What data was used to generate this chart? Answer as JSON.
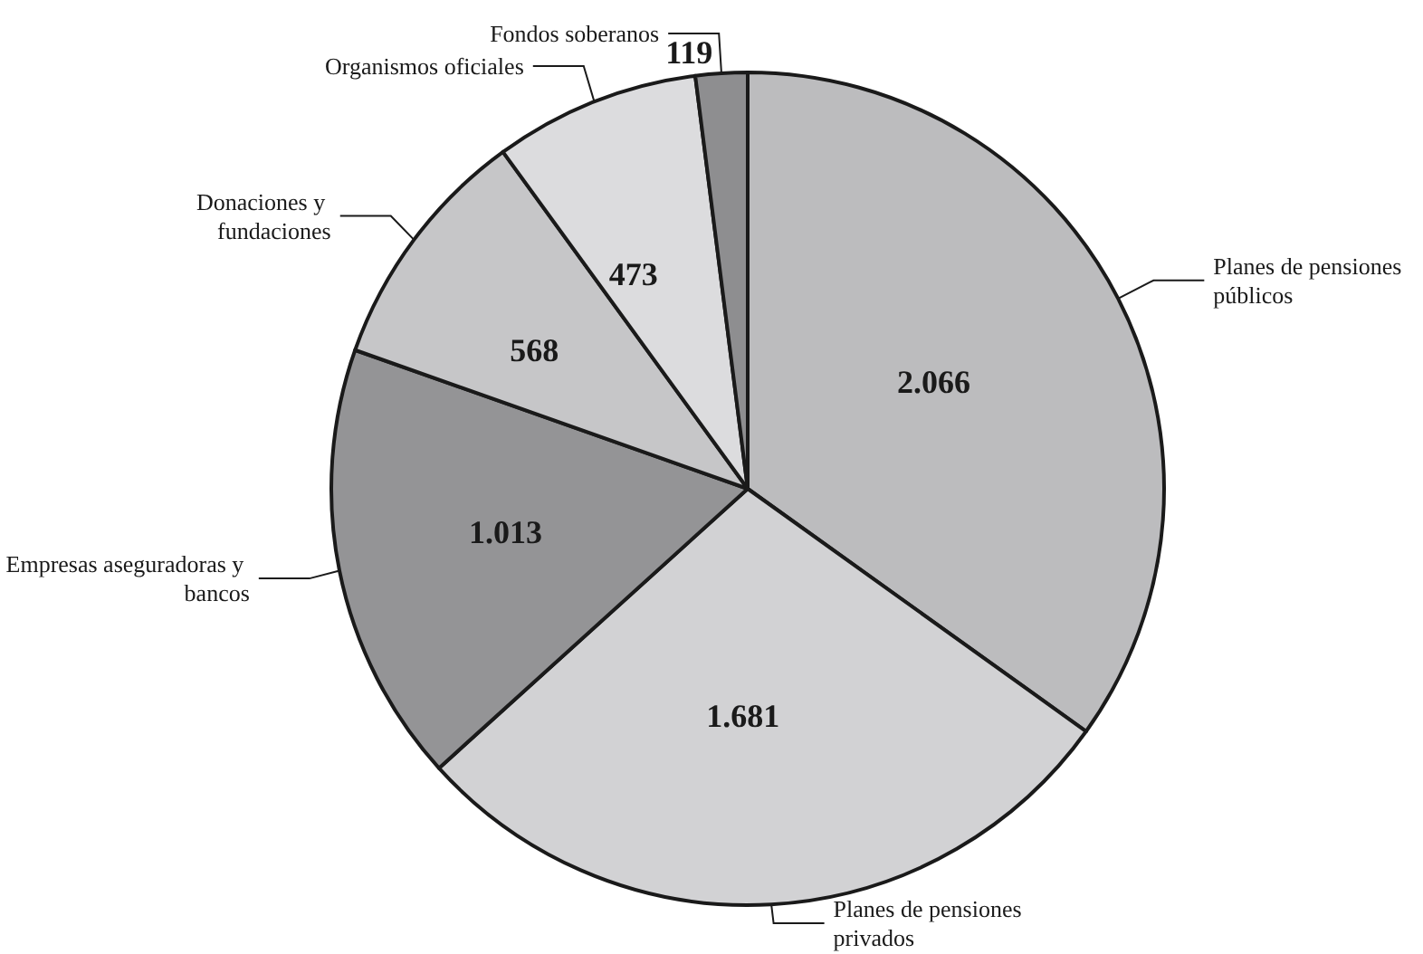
{
  "chart_data": {
    "type": "pie",
    "categories": [
      "Planes de pensiones públicos",
      "Planes de pensiones privados",
      "Empresas aseguradoras y bancos",
      "Donaciones y fundaciones",
      "Organismos oficiales",
      "Fondos soberanos"
    ],
    "values": [
      2066,
      1681,
      1013,
      568,
      473,
      119
    ],
    "value_labels": [
      "2.066",
      "1.681",
      "1.013",
      "568",
      "473",
      "119"
    ],
    "colors": [
      "#bcbcbe",
      "#d2d2d4",
      "#949496",
      "#c6c6c8",
      "#dcdcde",
      "#8e8e90"
    ],
    "legend": false
  }
}
